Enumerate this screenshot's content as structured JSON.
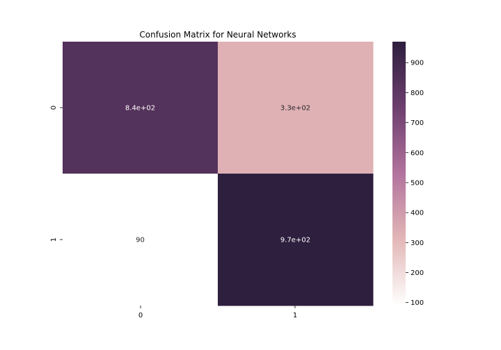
{
  "chart_data": {
    "type": "heatmap",
    "title": "Confusion Matrix for Neural Networks",
    "xlabel": "",
    "ylabel": "",
    "x_tick_labels": [
      "0",
      "1"
    ],
    "y_tick_labels": [
      "0",
      "1"
    ],
    "matrix": [
      [
        840,
        330
      ],
      [
        90,
        970
      ]
    ],
    "annotations": [
      [
        "8.4e+02",
        "3.3e+02"
      ],
      [
        "90",
        "9.7e+02"
      ]
    ],
    "colorbar": {
      "vmin": 90,
      "vmax": 970,
      "ticks": [
        "100",
        "200",
        "300",
        "400",
        "500",
        "600",
        "700",
        "800",
        "900"
      ],
      "colormap": "cubehelix_light",
      "color_stops": [
        "#ffffff",
        "#e3b7b7",
        "#b2739d",
        "#6d3f6f",
        "#2e1f3e"
      ]
    },
    "grid": false,
    "legend": "colorbar-right"
  }
}
